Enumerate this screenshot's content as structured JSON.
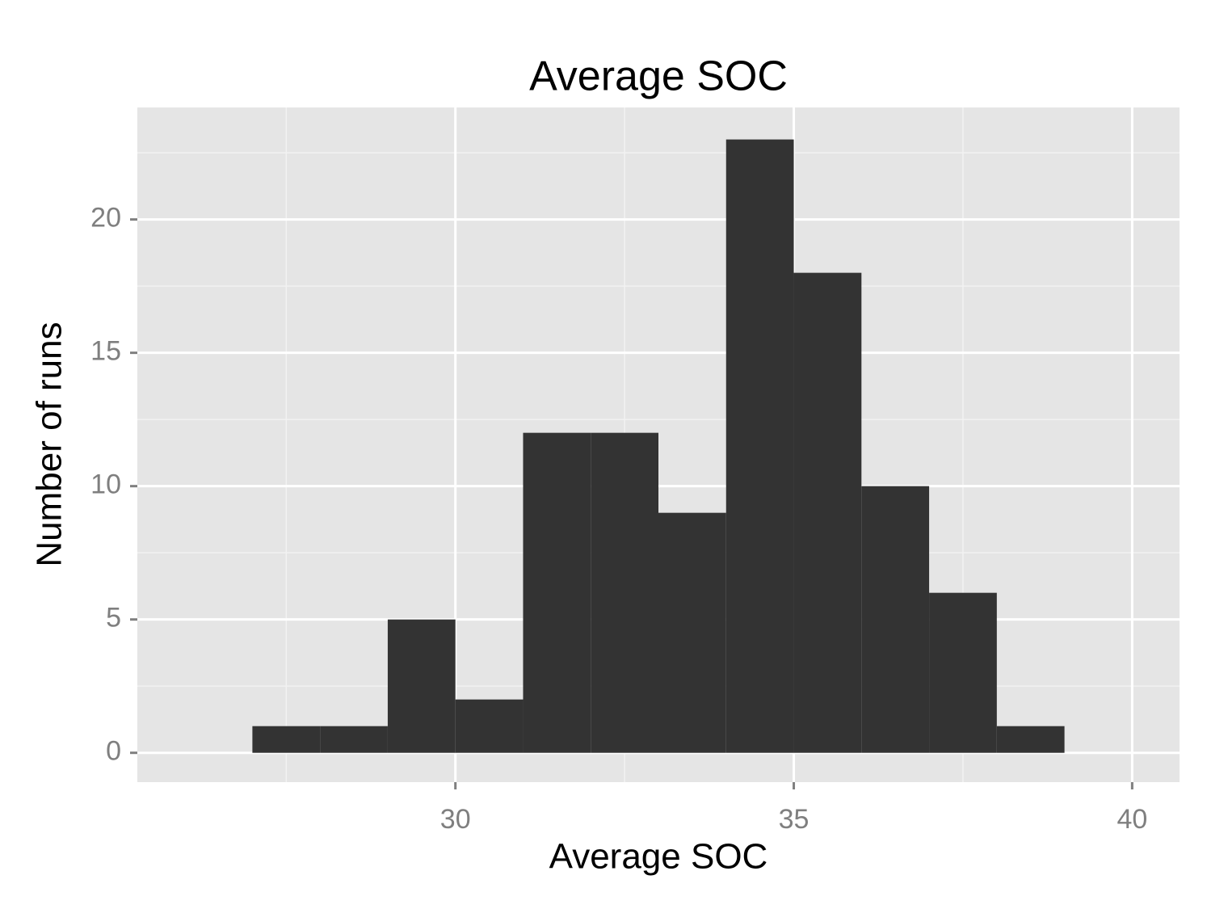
{
  "chart_data": {
    "type": "histogram",
    "title": "Average SOC",
    "x_label": "Average SOC",
    "y_label": "Number of runs",
    "bins": [
      27,
      28,
      29,
      30,
      31,
      32,
      33,
      34,
      35,
      36,
      37,
      38,
      39
    ],
    "values": [
      1,
      1,
      5,
      2,
      12,
      12,
      9,
      23,
      18,
      10,
      6,
      1
    ],
    "color": "#333333",
    "xlim": [
      25.3,
      40.7
    ],
    "ylim": [
      -1.1,
      24.2
    ],
    "xticks": [
      30,
      35,
      40
    ],
    "yticks": [
      0,
      5,
      10,
      15,
      20
    ],
    "grid": true
  }
}
